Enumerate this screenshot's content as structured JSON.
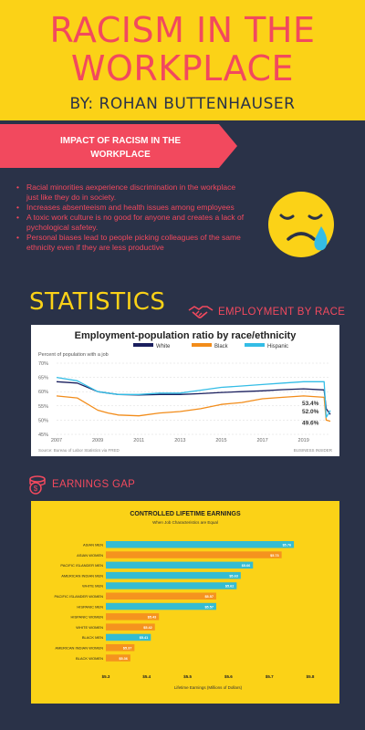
{
  "header": {
    "title_line1": "RACISM IN THE",
    "title_line2": "WORKPLACE",
    "author": "BY: ROHAN BUTTENHAUSER"
  },
  "impact": {
    "banner_line1": "IMPACT OF RACISM IN THE",
    "banner_line2": "WORKPLACE",
    "bullets": [
      "Racial minorities aexperience discrimination in the workplace just like they do in society.",
      "Increases absenteeism and health issues among employees",
      "A toxic work culture is no good for anyone and creates a lack of pychological safetey.",
      "Personal biases lead to people picking colleagues of the same ethnicity even if they are less productive"
    ]
  },
  "statistics": {
    "title": "STATISTICS",
    "employment_label": "EMPLOYMENT BY RACE",
    "earnings_label": "EARNINGS GAP"
  },
  "colors": {
    "background": "#2a3248",
    "yellow": "#fbd217",
    "coral": "#f2495e",
    "white_series": "#1a1f5e",
    "black_series": "#f28c1a",
    "hispanic_series": "#34bde6",
    "bar_teal": "#34bcd2",
    "bar_orange": "#f5931e"
  },
  "chart_data": [
    {
      "type": "line",
      "title": "Employment-population ratio by race/ethnicity",
      "subtitle": "Percent of population with a job",
      "source": "Source: Bureau of Labor Statistics via FRED",
      "brand": "BUSINESS INSIDER",
      "legend_position": "top",
      "x_ticks": [
        "2007",
        "2009",
        "2011",
        "2013",
        "2015",
        "2017",
        "2019"
      ],
      "y_ticks": [
        "70%",
        "65%",
        "60%",
        "55%",
        "50%",
        "45%"
      ],
      "ylim": [
        45,
        70
      ],
      "xlim": [
        2007,
        2020.3
      ],
      "end_labels": [
        "53.4%",
        "52.0%",
        "49.6%"
      ],
      "series": [
        {
          "name": "White",
          "x": [
            2007,
            2008,
            2009,
            2009.5,
            2010,
            2011,
            2012,
            2013,
            2014,
            2015,
            2016,
            2017,
            2018,
            2019,
            2020,
            2020.1,
            2020.3
          ],
          "y": [
            63.5,
            63.0,
            60.0,
            59.5,
            59.0,
            58.8,
            59.0,
            59.0,
            59.3,
            59.7,
            60.0,
            60.3,
            60.7,
            61.0,
            60.6,
            54.0,
            52.0
          ]
        },
        {
          "name": "Black",
          "x": [
            2007,
            2008,
            2009,
            2009.5,
            2010,
            2011,
            2012,
            2013,
            2014,
            2015,
            2016,
            2017,
            2018,
            2019,
            2020,
            2020.1,
            2020.3
          ],
          "y": [
            58.5,
            57.8,
            53.5,
            52.5,
            51.8,
            51.5,
            52.5,
            53.0,
            54.0,
            55.5,
            56.2,
            57.5,
            58.0,
            58.5,
            58.0,
            50.0,
            49.6
          ]
        },
        {
          "name": "Hispanic",
          "x": [
            2007,
            2008,
            2009,
            2009.5,
            2010,
            2011,
            2012,
            2013,
            2014,
            2015,
            2016,
            2017,
            2018,
            2019,
            2020,
            2020.1,
            2020.3
          ],
          "y": [
            65.0,
            63.8,
            60.0,
            59.5,
            59.0,
            59.0,
            59.5,
            59.5,
            60.5,
            61.5,
            62.0,
            62.5,
            63.0,
            63.5,
            63.5,
            51.0,
            53.4
          ]
        }
      ]
    },
    {
      "type": "bar",
      "orientation": "horizontal",
      "title": "CONTROLLED LIFETIME EARNINGS",
      "subtitle": "When Job Characteristics are Equal",
      "xlabel": "Lifetime Earnings (Millions of Dollars)",
      "x_ticks": [
        "$5.3",
        "$5.4",
        "$5.5",
        "$5.6",
        "$5.7",
        "$5.8"
      ],
      "xlim": [
        5.3,
        5.8
      ],
      "categories": [
        "ASIAN MEN",
        "ASIAN WOMEN",
        "PACIFIC ISLANDER MEN",
        "AMERICAN INDIAN MEN",
        "WHITE MEN",
        "PACIFIC ISLANDER WOMEN",
        "HISPANIC MEN",
        "HISPANIC WOMEN",
        "WHITE WOMEN",
        "BLACK MEN",
        "AMERICAN INDIAN WOMEN",
        "BLACK WOMEN"
      ],
      "values": [
        5.76,
        5.73,
        5.66,
        5.63,
        5.62,
        5.57,
        5.57,
        5.43,
        5.42,
        5.41,
        5.37,
        5.36
      ],
      "value_labels": [
        "$5.76",
        "$5.73",
        "$5.66",
        "$5.63",
        "$5.62",
        "$5.57",
        "$5.57",
        "$5.43",
        "$5.42",
        "$5.41",
        "$5.37",
        "$5.36"
      ],
      "bar_colors": [
        "teal",
        "orange",
        "teal",
        "teal",
        "teal",
        "orange",
        "teal",
        "orange",
        "orange",
        "teal",
        "orange",
        "orange"
      ]
    }
  ]
}
